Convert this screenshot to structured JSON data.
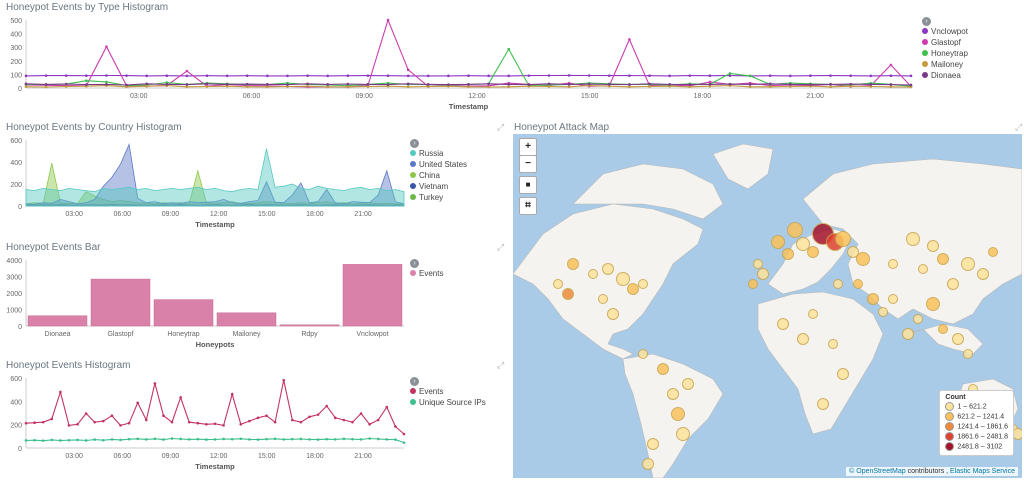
{
  "panels": {
    "type_hist": {
      "title": "Honeypot Events by Type Histogram",
      "xlabel": "Timestamp"
    },
    "country_hist": {
      "title": "Honeypot Events by Country Histogram",
      "xlabel": "Timestamp"
    },
    "bar": {
      "title": "Honeypot Events Bar",
      "xlabel": "Honeypots"
    },
    "events_hist": {
      "title": "Honeypot Events Histogram",
      "xlabel": "Timestamp"
    },
    "map": {
      "title": "Honeypot Attack Map"
    }
  },
  "map": {
    "zoom_in": "+",
    "zoom_out": "−",
    "draw_label": "■",
    "crop_label": "⌗",
    "legend_title": "Count",
    "legend": [
      {
        "label": "1 – 621.2",
        "color": "#fde49c"
      },
      {
        "label": "621.2 – 1241.4",
        "color": "#f9c25a"
      },
      {
        "label": "1241.4 – 1861.6",
        "color": "#f08a3a"
      },
      {
        "label": "1861.6 – 2481.8",
        "color": "#e0422f"
      },
      {
        "label": "2481.8 – 3102",
        "color": "#a3132a"
      }
    ],
    "attribution_link": "© OpenStreetMap",
    "attribution_mid": " contributors , ",
    "attribution_link2": "Elastic Maps Service"
  },
  "chart_data": [
    {
      "type": "line",
      "title": "Honeypot Events by Type Histogram",
      "xlabel": "Timestamp",
      "x_ticks": [
        "03:00",
        "06:00",
        "09:00",
        "12:00",
        "15:00",
        "18:00",
        "21:00"
      ],
      "y_ticks": [
        "0",
        "100",
        "200",
        "300",
        "400",
        "500"
      ],
      "series": [
        {
          "name": "Vnclowpot",
          "color": "#8c36c4",
          "values": [
            100,
            102,
            102,
            101,
            103,
            102,
            100,
            101,
            100,
            101,
            100,
            101,
            100,
            100,
            101,
            100,
            101,
            102,
            101,
            100,
            100,
            100,
            101,
            100,
            100,
            102,
            103,
            104,
            103,
            102,
            102,
            101,
            100,
            102,
            101,
            102,
            100,
            101,
            100,
            101,
            102,
            101,
            100,
            101,
            100
          ]
        },
        {
          "name": "Glastopf",
          "color": "#cc3cb0",
          "values": [
            25,
            22,
            20,
            18,
            340,
            18,
            15,
            20,
            140,
            15,
            30,
            20,
            18,
            12,
            8,
            10,
            8,
            20,
            560,
            150,
            12,
            20,
            15,
            18,
            40,
            30,
            20,
            40,
            15,
            18,
            400,
            20,
            25,
            18,
            50,
            30,
            40,
            20,
            25,
            20,
            30,
            12,
            20,
            190,
            12
          ]
        },
        {
          "name": "Honeytrap",
          "color": "#3fbf4d",
          "values": [
            30,
            28,
            32,
            60,
            50,
            20,
            25,
            45,
            30,
            40,
            35,
            30,
            28,
            40,
            30,
            25,
            20,
            30,
            40,
            30,
            28,
            25,
            30,
            35,
            320,
            20,
            25,
            30,
            40,
            35,
            30,
            30,
            25,
            35,
            30,
            120,
            100,
            30,
            40,
            35,
            30,
            25,
            40,
            30,
            15
          ]
        },
        {
          "name": "Mailoney",
          "color": "#c49a3c",
          "values": [
            10,
            8,
            12,
            15,
            20,
            10,
            15,
            20,
            10,
            12,
            15,
            10,
            10,
            12,
            15,
            8,
            10,
            12,
            15,
            10,
            12,
            15,
            10,
            8,
            10,
            15,
            12,
            10,
            20,
            15,
            10,
            12,
            15,
            10,
            15,
            20,
            10,
            10,
            12,
            15,
            10,
            15,
            12,
            10,
            8
          ]
        },
        {
          "name": "Dionaea",
          "color": "#7a3a8a",
          "values": [
            35,
            30,
            33,
            28,
            30,
            25,
            35,
            30,
            28,
            35,
            30,
            32,
            30,
            28,
            35,
            30,
            33,
            30,
            28,
            35,
            30,
            28,
            30,
            35,
            30,
            28,
            35,
            30,
            32,
            30,
            28,
            35,
            30,
            28,
            30,
            32,
            30,
            35,
            30,
            28,
            30,
            32,
            30,
            28,
            25
          ]
        }
      ]
    },
    {
      "type": "area",
      "title": "Honeypot Events by Country Histogram",
      "xlabel": "Timestamp",
      "x_ticks": [
        "03:00",
        "06:00",
        "09:00",
        "12:00",
        "15:00",
        "18:00",
        "21:00"
      ],
      "y_ticks": [
        "0",
        "200",
        "400",
        "600"
      ],
      "series": [
        {
          "name": "Russia",
          "color": "#55c8c0",
          "values": [
            150,
            140,
            160,
            150,
            140,
            160,
            150,
            140,
            130,
            160,
            150,
            160,
            170,
            150,
            160,
            140,
            150,
            160,
            150,
            160,
            170,
            150,
            160,
            140,
            130,
            150,
            160,
            150,
            520,
            170,
            180,
            200,
            160,
            150,
            180,
            160,
            150,
            140,
            160,
            170,
            150,
            160,
            140,
            150,
            130
          ]
        },
        {
          "name": "United States",
          "color": "#5a78c8",
          "values": [
            20,
            15,
            30,
            25,
            60,
            40,
            20,
            30,
            60,
            180,
            260,
            380,
            560,
            70,
            30,
            40,
            20,
            30,
            25,
            40,
            30,
            35,
            40,
            60,
            30,
            25,
            40,
            50,
            220,
            35,
            30,
            100,
            210,
            30,
            40,
            150,
            30,
            20,
            40,
            35,
            30,
            100,
            320,
            40,
            20
          ]
        },
        {
          "name": "China",
          "color": "#8cc84a",
          "values": [
            20,
            30,
            25,
            390,
            30,
            25,
            20,
            130,
            90,
            60,
            40,
            50,
            40,
            30,
            25,
            20,
            30,
            25,
            30,
            20,
            320,
            30,
            25,
            30,
            40,
            20,
            25,
            30,
            40,
            30,
            25,
            20,
            30,
            25,
            30,
            40,
            25,
            30,
            20,
            25,
            30,
            20,
            25,
            20,
            15
          ]
        },
        {
          "name": "Vietnam",
          "color": "#3a56a8",
          "values": [
            10,
            8,
            12,
            10,
            15,
            10,
            8,
            10,
            12,
            10,
            15,
            10,
            12,
            10,
            8,
            10,
            12,
            10,
            15,
            10,
            8,
            10,
            12,
            10,
            8,
            10,
            15,
            10,
            12,
            10,
            8,
            10,
            12,
            10,
            8,
            10,
            12,
            10,
            8,
            10,
            12,
            10,
            8,
            10,
            8
          ]
        },
        {
          "name": "Turkey",
          "color": "#6aba4a",
          "values": [
            5,
            6,
            5,
            8,
            5,
            6,
            5,
            7,
            5,
            6,
            5,
            6,
            5,
            8,
            5,
            6,
            5,
            7,
            5,
            6,
            5,
            6,
            5,
            8,
            5,
            6,
            5,
            7,
            5,
            6,
            5,
            6,
            5,
            8,
            5,
            6,
            5,
            7,
            5,
            6,
            5,
            6,
            5,
            8,
            5
          ]
        }
      ]
    },
    {
      "type": "bar",
      "title": "Honeypot Events Bar",
      "xlabel": "Honeypots",
      "categories": [
        "Dionaea",
        "Glastopf",
        "Honeytrap",
        "Mailoney",
        "Rdpy",
        "Vnclowpot"
      ],
      "series": [
        {
          "name": "Events",
          "color": "#d981a8",
          "values": [
            700,
            3200,
            1800,
            900,
            80,
            4200
          ]
        }
      ],
      "y_ticks": [
        "0",
        "1000",
        "2000",
        "3000",
        "4000"
      ]
    },
    {
      "type": "line",
      "title": "Honeypot Events Histogram",
      "xlabel": "Timestamp",
      "x_ticks": [
        "03:00",
        "06:00",
        "09:00",
        "12:00",
        "15:00",
        "18:00",
        "21:00"
      ],
      "y_ticks": [
        "0",
        "200",
        "400",
        "600"
      ],
      "series": [
        {
          "name": "Events",
          "color": "#c23364",
          "values": [
            230,
            235,
            240,
            270,
            520,
            210,
            220,
            320,
            240,
            250,
            300,
            210,
            230,
            420,
            260,
            600,
            300,
            240,
            470,
            240,
            230,
            220,
            225,
            210,
            500,
            220,
            250,
            280,
            300,
            240,
            630,
            260,
            240,
            290,
            310,
            390,
            280,
            260,
            240,
            320,
            220,
            260,
            380,
            200,
            130
          ]
        },
        {
          "name": "Unique Source IPs",
          "color": "#3bbf8c",
          "values": [
            70,
            72,
            68,
            75,
            70,
            72,
            75,
            70,
            78,
            72,
            80,
            75,
            82,
            85,
            80,
            85,
            78,
            88,
            84,
            80,
            82,
            78,
            80,
            84,
            82,
            86,
            80,
            78,
            82,
            85,
            80,
            82,
            84,
            80,
            78,
            82,
            80,
            85,
            82,
            80,
            88,
            84,
            80,
            78,
            50
          ]
        }
      ]
    }
  ]
}
